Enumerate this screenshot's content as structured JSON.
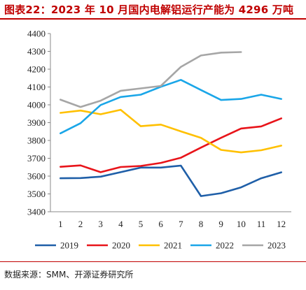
{
  "header": {
    "title": "图表22：2023 年 10 月国内电解铝运行产能为 4296 万吨"
  },
  "footer": {
    "source": "数据来源：SMM、开源证券研究所"
  },
  "chart_data": {
    "type": "line",
    "title": "",
    "xlabel": "",
    "ylabel": "",
    "x": [
      1,
      2,
      3,
      4,
      5,
      6,
      7,
      8,
      9,
      10,
      11,
      12
    ],
    "x_tick_labels": [
      "1",
      "2",
      "3",
      "4",
      "5",
      "6",
      "7",
      "8",
      "9",
      "10",
      "11",
      "12"
    ],
    "ylim": [
      3400,
      4400
    ],
    "y_ticks": [
      3400,
      3500,
      3600,
      3700,
      3800,
      3900,
      4000,
      4100,
      4200,
      4300,
      4400
    ],
    "y_tick_labels": [
      "3400",
      "3500",
      "3600",
      "3700",
      "3800",
      "3900",
      "4000",
      "4100",
      "4200",
      "4300",
      "4400"
    ],
    "grid": false,
    "legend_position": "bottom",
    "series": [
      {
        "name": "2019",
        "color": "#1f5fa8",
        "values": [
          3588,
          3589,
          3597,
          3622,
          3648,
          3648,
          3659,
          3488,
          3504,
          3537,
          3588,
          3621
        ]
      },
      {
        "name": "2020",
        "color": "#e8141a",
        "values": [
          3652,
          3660,
          3622,
          3651,
          3657,
          3674,
          3703,
          3760,
          3815,
          3867,
          3879,
          3924
        ]
      },
      {
        "name": "2021",
        "color": "#ffc000",
        "values": [
          3955,
          3968,
          3947,
          3972,
          3880,
          3889,
          3851,
          3815,
          3747,
          3733,
          3745,
          3771
        ]
      },
      {
        "name": "2022",
        "color": "#1aa6e8",
        "values": [
          3840,
          3897,
          3999,
          4044,
          4057,
          4101,
          4140,
          4083,
          4027,
          4033,
          4057,
          4033
        ]
      },
      {
        "name": "2023",
        "color": "#a6a6a6",
        "values": [
          4029,
          3988,
          4023,
          4079,
          4092,
          4106,
          4213,
          4277,
          4293,
          4296,
          null,
          null
        ]
      }
    ]
  }
}
